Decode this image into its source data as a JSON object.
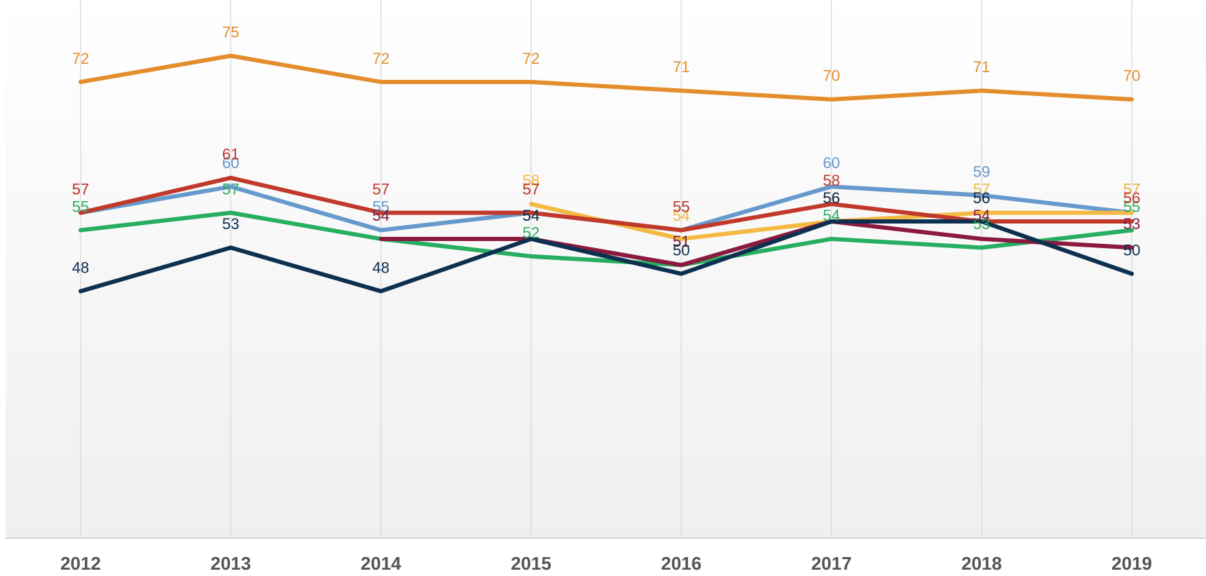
{
  "chart_data": {
    "type": "line",
    "categories": [
      "2012",
      "2013",
      "2014",
      "2015",
      "2016",
      "2017",
      "2018",
      "2019"
    ],
    "ylim": [
      20,
      81.4
    ],
    "grid": true,
    "series": [
      {
        "color": "#e38d2c",
        "values": [
          72,
          75,
          72,
          72,
          71,
          70,
          71,
          70
        ]
      },
      {
        "color": "#6699cc",
        "values": [
          57,
          60,
          55,
          57,
          55,
          60,
          59,
          57
        ]
      },
      {
        "color": "#f4b942",
        "values": [
          null,
          null,
          null,
          58,
          54,
          56,
          57,
          57
        ]
      },
      {
        "color": "#27ae60",
        "values": [
          55,
          57,
          54,
          52,
          51,
          54,
          53,
          55
        ]
      },
      {
        "color": "#8b1a3f",
        "values": [
          null,
          null,
          54,
          54,
          51,
          56,
          54,
          53
        ]
      },
      {
        "color": "#c0392b",
        "values": [
          57,
          61,
          57,
          57,
          55,
          58,
          56,
          56
        ]
      },
      {
        "color": "#0d3050",
        "values": [
          48,
          53,
          48,
          54,
          50,
          56,
          56,
          50
        ]
      }
    ]
  }
}
